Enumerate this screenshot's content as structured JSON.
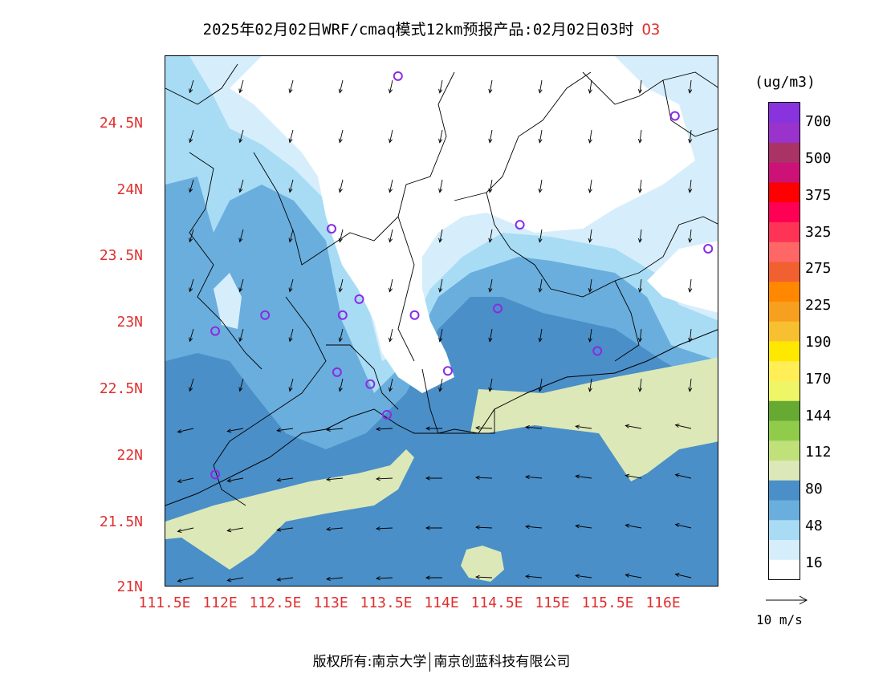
{
  "header": {
    "title": "2025年02月02日WRF/cmaq模式12km预报产品:02月02日03时",
    "species": "O3"
  },
  "map": {
    "lon_range": [
      111.5,
      116.5
    ],
    "lat_range": [
      21.0,
      25.0
    ],
    "lon_ticks": [
      "111.5E",
      "112E",
      "112.5E",
      "113E",
      "113.5E",
      "114E",
      "114.5E",
      "115E",
      "115.5E",
      "116E"
    ],
    "lat_ticks": [
      "21N",
      "21.5N",
      "22N",
      "22.5N",
      "23N",
      "23.5N",
      "24N",
      "24.5N"
    ],
    "station_markers": [
      [
        113.6,
        24.85
      ],
      [
        116.1,
        24.55
      ],
      [
        113.0,
        23.7
      ],
      [
        114.7,
        23.73
      ],
      [
        116.4,
        23.55
      ],
      [
        112.4,
        23.05
      ],
      [
        111.95,
        22.93
      ],
      [
        113.1,
        23.05
      ],
      [
        113.25,
        23.17
      ],
      [
        113.75,
        23.05
      ],
      [
        114.5,
        23.1
      ],
      [
        115.4,
        22.78
      ],
      [
        113.05,
        22.62
      ],
      [
        113.35,
        22.53
      ],
      [
        114.05,
        22.63
      ],
      [
        113.5,
        22.3
      ],
      [
        111.95,
        21.85
      ]
    ]
  },
  "colorbar": {
    "unit": "(ug/m3)",
    "labels": [
      "700",
      "500",
      "375",
      "325",
      "275",
      "225",
      "190",
      "170",
      "144",
      "112",
      "80",
      "48",
      "16"
    ],
    "colors": [
      "#ffffff",
      "#d6eefb",
      "#a8dcf5",
      "#6aaedd",
      "#4a8fc8",
      "#dde8b8",
      "#c0e07a",
      "#90cc4a",
      "#66aa33",
      "#eef566",
      "#ffee55",
      "#ffe800",
      "#f7c030",
      "#f7a020",
      "#ff8800",
      "#f06030",
      "#ff6666",
      "#ff3355",
      "#ff0055",
      "#ff0000",
      "#cc1177",
      "#aa3366",
      "#9933cc",
      "#8833dd"
    ]
  },
  "wind_reference": {
    "label": "10 m/s"
  },
  "footer": {
    "left": "版权所有:南京大学",
    "right": "南京创蓝科技有限公司"
  }
}
